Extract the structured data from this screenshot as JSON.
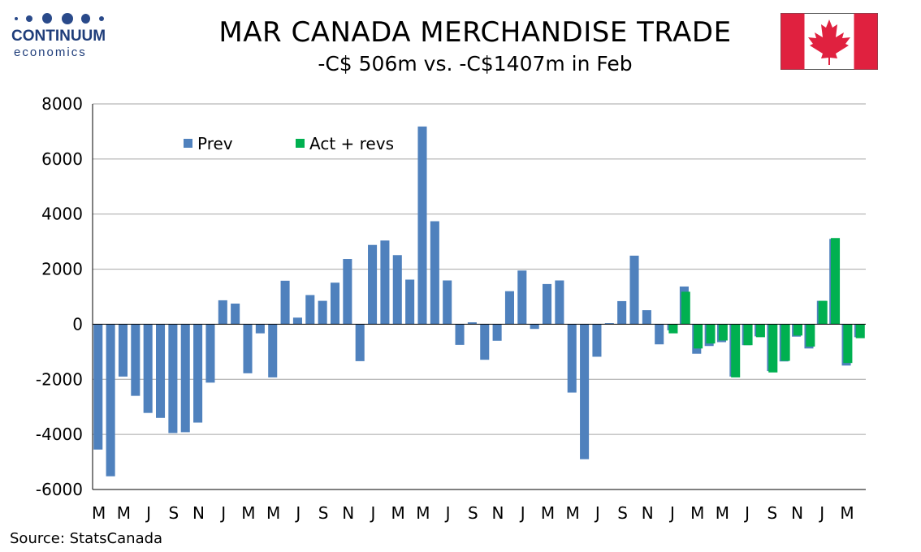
{
  "header": {
    "logo_line1": "CONTINUUM",
    "logo_line2": "economics",
    "title": "MAR CANADA MERCHANDISE TRADE",
    "subtitle": "-C$ 506m vs. -C$1407m in Feb"
  },
  "footer": {
    "source": "Source: StatsCanada"
  },
  "colors": {
    "prev": "#4f81bd",
    "act": "#00b050",
    "grid": "#a6a6a6",
    "flag_red": "#e0213f"
  },
  "chart_data": {
    "type": "bar",
    "ylim": [
      -6000,
      8000
    ],
    "yticks": [
      -6000,
      -4000,
      -2000,
      0,
      2000,
      4000,
      6000,
      8000
    ],
    "ytick_labels": [
      "-6000",
      "-4000",
      "-2000",
      "0",
      "2000",
      "4000",
      "6000",
      "8000"
    ],
    "x_tick_labels": [
      "M",
      "M",
      "J",
      "S",
      "N",
      "J",
      "M",
      "M",
      "J",
      "S",
      "N",
      "J",
      "M",
      "M",
      "J",
      "S",
      "N",
      "J",
      "M",
      "M",
      "J",
      "S",
      "N",
      "J",
      "M",
      "M",
      "J",
      "S",
      "N",
      "J",
      "M"
    ],
    "legend_position": "top-left",
    "grid": true,
    "series": [
      {
        "name": "Prev",
        "values": [
          -4550,
          -5520,
          -1900,
          -2600,
          -3220,
          -3400,
          -3950,
          -3920,
          -3570,
          -2120,
          870,
          750,
          -1780,
          -330,
          -1930,
          1580,
          240,
          1060,
          850,
          1510,
          2370,
          -1340,
          2880,
          3040,
          2510,
          1620,
          7180,
          3740,
          1590,
          -750,
          70,
          -1290,
          -600,
          1200,
          1950,
          -170,
          1460,
          1590,
          -2480,
          -4900,
          -1180,
          40,
          840,
          2490,
          510,
          -730,
          -220,
          1370,
          -1070,
          -790,
          -650,
          -1900,
          -760,
          -440,
          -1700,
          -1350,
          -450,
          -880,
          850,
          3100,
          -1500,
          -470
        ]
      },
      {
        "name": "Act + revs",
        "values": [
          null,
          null,
          null,
          null,
          null,
          null,
          null,
          null,
          null,
          null,
          null,
          null,
          null,
          null,
          null,
          null,
          null,
          null,
          null,
          null,
          null,
          null,
          null,
          null,
          null,
          null,
          null,
          null,
          null,
          null,
          null,
          null,
          null,
          null,
          null,
          null,
          null,
          null,
          null,
          null,
          null,
          null,
          null,
          null,
          null,
          null,
          -330,
          1180,
          -880,
          -700,
          -590,
          -1930,
          -760,
          -470,
          -1750,
          -1330,
          -410,
          -810,
          850,
          3130,
          -1407,
          -506
        ]
      }
    ]
  }
}
